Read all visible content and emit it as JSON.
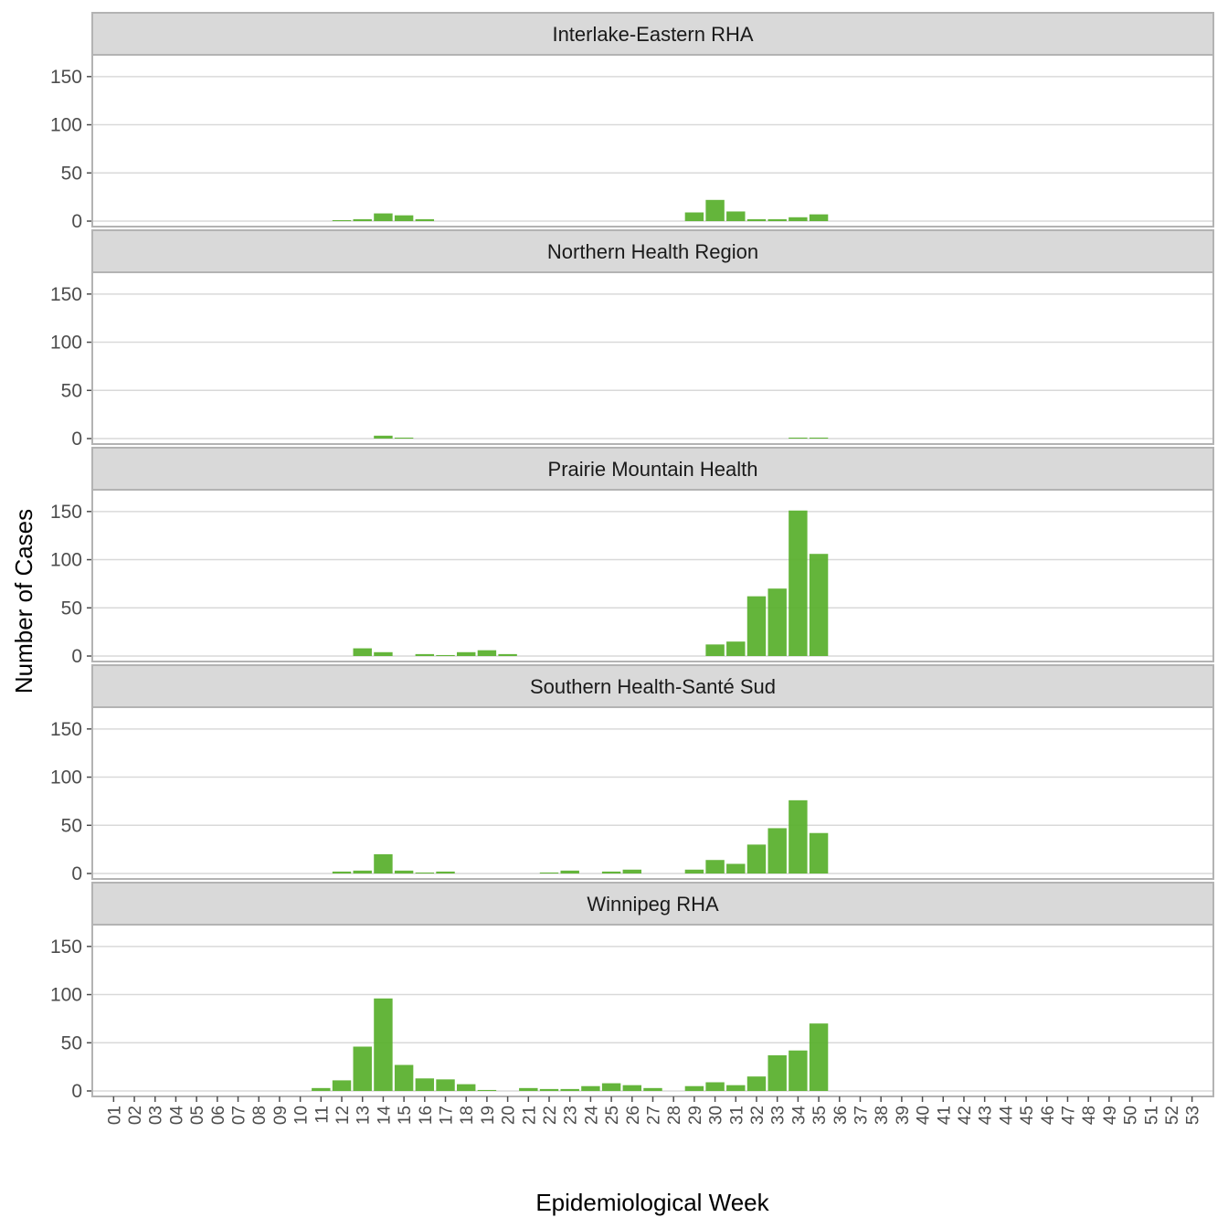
{
  "chart_data": {
    "type": "bar",
    "xlabel": "Epidemiological Week",
    "ylabel": "Number of Cases",
    "ylim": [
      0,
      165
    ],
    "yticks": [
      0,
      50,
      100,
      150
    ],
    "weeks": [
      "01",
      "02",
      "03",
      "04",
      "05",
      "06",
      "07",
      "08",
      "09",
      "10",
      "11",
      "12",
      "13",
      "14",
      "15",
      "16",
      "17",
      "18",
      "19",
      "20",
      "21",
      "22",
      "23",
      "24",
      "25",
      "26",
      "27",
      "28",
      "29",
      "30",
      "31",
      "32",
      "33",
      "34",
      "35",
      "36",
      "37",
      "38",
      "39",
      "40",
      "41",
      "42",
      "43",
      "44",
      "45",
      "46",
      "47",
      "48",
      "49",
      "50",
      "51",
      "52",
      "53"
    ],
    "grid": true,
    "colors": {
      "bar": "#5cb130",
      "strip": "#d9d9d9",
      "border": "#b3b3b3"
    },
    "panels": [
      {
        "name": "Interlake-Eastern RHA",
        "values": [
          0,
          0,
          0,
          0,
          0,
          0,
          0,
          0,
          0,
          0,
          0,
          1,
          2,
          8,
          6,
          2,
          0,
          0,
          0,
          0,
          0,
          0,
          0,
          0,
          0,
          0,
          0,
          0,
          9,
          22,
          10,
          2,
          2,
          4,
          7,
          0,
          0,
          0,
          0,
          0,
          0,
          0,
          0,
          0,
          0,
          0,
          0,
          0,
          0,
          0,
          0,
          0,
          0
        ]
      },
      {
        "name": "Northern Health Region",
        "values": [
          0,
          0,
          0,
          0,
          0,
          0,
          0,
          0,
          0,
          0,
          0,
          0,
          0,
          3,
          1,
          0,
          0,
          0,
          0,
          0,
          0,
          0,
          0,
          0,
          0,
          0,
          0,
          0,
          0,
          0,
          0,
          0,
          0,
          1,
          1,
          0,
          0,
          0,
          0,
          0,
          0,
          0,
          0,
          0,
          0,
          0,
          0,
          0,
          0,
          0,
          0,
          0,
          0
        ]
      },
      {
        "name": "Prairie Mountain Health",
        "values": [
          0,
          0,
          0,
          0,
          0,
          0,
          0,
          0,
          0,
          0,
          0,
          0,
          8,
          4,
          0,
          2,
          1,
          4,
          6,
          2,
          0,
          0,
          0,
          0,
          0,
          0,
          0,
          0,
          0,
          12,
          15,
          62,
          70,
          151,
          106,
          0,
          0,
          0,
          0,
          0,
          0,
          0,
          0,
          0,
          0,
          0,
          0,
          0,
          0,
          0,
          0,
          0,
          0
        ]
      },
      {
        "name": "Southern Health-Santé Sud",
        "values": [
          0,
          0,
          0,
          0,
          0,
          0,
          0,
          0,
          0,
          0,
          0,
          2,
          3,
          20,
          3,
          1,
          2,
          0,
          0,
          0,
          0,
          1,
          3,
          0,
          2,
          4,
          0,
          0,
          4,
          14,
          10,
          30,
          47,
          76,
          42,
          0,
          0,
          0,
          0,
          0,
          0,
          0,
          0,
          0,
          0,
          0,
          0,
          0,
          0,
          0,
          0,
          0,
          0
        ]
      },
      {
        "name": "Winnipeg RHA",
        "values": [
          0,
          0,
          0,
          0,
          0,
          0,
          0,
          0,
          0,
          0,
          3,
          11,
          46,
          96,
          27,
          13,
          12,
          7,
          1,
          0,
          3,
          2,
          2,
          5,
          8,
          6,
          3,
          0,
          5,
          9,
          6,
          15,
          37,
          42,
          70,
          0,
          0,
          0,
          0,
          0,
          0,
          0,
          0,
          0,
          0,
          0,
          0,
          0,
          0,
          0,
          0,
          0,
          0
        ]
      }
    ]
  }
}
